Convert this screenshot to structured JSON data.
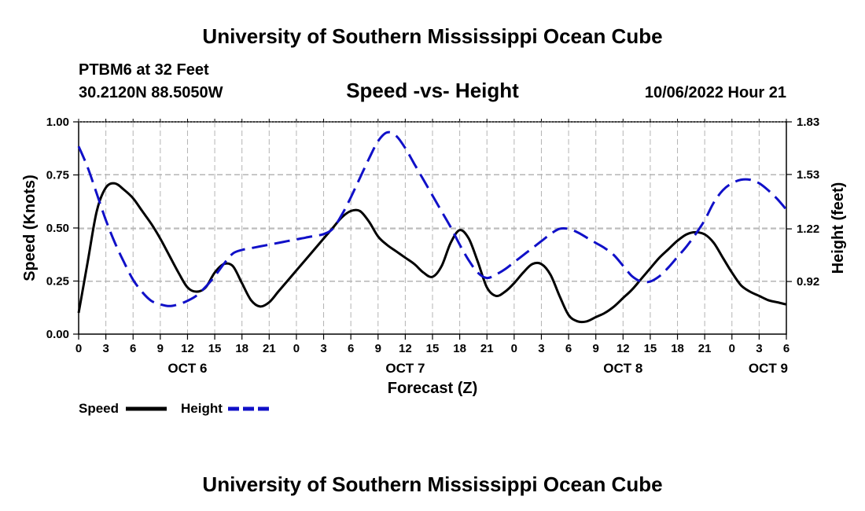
{
  "header": {
    "title": "University of Southern Mississippi Ocean Cube",
    "station": "PTBM6 at 32 Feet",
    "location": "30.2120N  88.5050W",
    "chart_title": "Speed -vs- Height",
    "timestamp": "10/06/2022 Hour 21"
  },
  "footer": {
    "title": "University of Southern Mississippi Ocean Cube"
  },
  "legend": {
    "speed_label": "Speed",
    "height_label": "Height"
  },
  "colors": {
    "speed": "#000000",
    "height": "#1010c8",
    "grid": "#b4b4b4"
  },
  "chart_data": {
    "type": "line",
    "title": "Speed -vs- Height",
    "xlabel": "Forecast (Z)",
    "ylabel": "Speed (Knots)",
    "y2label": "Height (feet)",
    "xlim": [
      0,
      78
    ],
    "ylim": [
      0,
      1.0
    ],
    "y2lim": [
      0.62,
      1.83
    ],
    "x_ticks": [
      0,
      3,
      6,
      9,
      12,
      15,
      18,
      21,
      24,
      27,
      30,
      33,
      36,
      39,
      42,
      45,
      48,
      51,
      54,
      57,
      60,
      63,
      66,
      69,
      72,
      75,
      78
    ],
    "x_tick_labels": [
      "0",
      "3",
      "6",
      "9",
      "12",
      "15",
      "18",
      "21",
      "0",
      "3",
      "6",
      "9",
      "12",
      "15",
      "18",
      "21",
      "0",
      "3",
      "6",
      "9",
      "12",
      "15",
      "18",
      "21",
      "0",
      "3",
      "6"
    ],
    "y_ticks": [
      0,
      0.25,
      0.5,
      0.75,
      1.0
    ],
    "y_tick_labels": [
      "0.00",
      "0.25",
      "0.50",
      "0.75",
      "1.00"
    ],
    "y2_ticks": [
      0.92,
      1.22,
      1.53,
      1.83
    ],
    "y2_tick_labels": [
      "0.92",
      "1.22",
      "1.53",
      "1.83"
    ],
    "day_labels": [
      {
        "x": 12,
        "label": "OCT 6"
      },
      {
        "x": 36,
        "label": "OCT 7"
      },
      {
        "x": 60,
        "label": "OCT 8"
      },
      {
        "x": 76,
        "label": "OCT 9"
      }
    ],
    "grid": true,
    "series": [
      {
        "name": "Speed",
        "axis": "left",
        "style": "solid",
        "x": [
          0,
          1,
          2,
          3,
          4,
          5,
          6,
          7,
          8,
          9,
          10,
          11,
          12,
          13,
          14,
          15,
          16,
          17,
          18,
          19,
          20,
          21,
          22,
          23,
          24,
          25,
          26,
          27,
          28,
          29,
          30,
          31,
          32,
          33,
          34,
          35,
          36,
          37,
          38,
          39,
          40,
          41,
          42,
          43,
          44,
          45,
          46,
          47,
          48,
          49,
          50,
          51,
          52,
          53,
          54,
          55,
          56,
          57,
          58,
          59,
          60,
          61,
          62,
          63,
          64,
          65,
          66,
          67,
          68,
          69,
          70,
          71,
          72,
          73,
          74,
          75,
          76,
          77,
          78
        ],
        "values": [
          0.1,
          0.34,
          0.58,
          0.69,
          0.71,
          0.68,
          0.64,
          0.58,
          0.52,
          0.45,
          0.37,
          0.29,
          0.22,
          0.2,
          0.22,
          0.29,
          0.33,
          0.32,
          0.24,
          0.16,
          0.13,
          0.15,
          0.2,
          0.25,
          0.3,
          0.35,
          0.4,
          0.45,
          0.5,
          0.55,
          0.58,
          0.58,
          0.53,
          0.46,
          0.42,
          0.39,
          0.36,
          0.33,
          0.29,
          0.27,
          0.32,
          0.43,
          0.49,
          0.45,
          0.34,
          0.22,
          0.18,
          0.2,
          0.24,
          0.29,
          0.33,
          0.33,
          0.28,
          0.18,
          0.09,
          0.06,
          0.06,
          0.08,
          0.1,
          0.13,
          0.17,
          0.21,
          0.26,
          0.31,
          0.36,
          0.4,
          0.44,
          0.47,
          0.48,
          0.47,
          0.43,
          0.36,
          0.29,
          0.23,
          0.2,
          0.18,
          0.16,
          0.15,
          0.14
        ]
      },
      {
        "name": "Height",
        "axis": "right",
        "style": "dashed",
        "x": [
          0,
          1,
          2,
          3,
          4,
          5,
          6,
          7,
          8,
          9,
          10,
          11,
          12,
          13,
          14,
          15,
          16,
          17,
          18,
          19,
          20,
          21,
          22,
          23,
          24,
          25,
          26,
          27,
          28,
          29,
          30,
          31,
          32,
          33,
          34,
          35,
          36,
          37,
          38,
          39,
          40,
          41,
          42,
          43,
          44,
          45,
          46,
          47,
          48,
          49,
          50,
          51,
          52,
          53,
          54,
          55,
          56,
          57,
          58,
          59,
          60,
          61,
          62,
          63,
          64,
          65,
          66,
          67,
          68,
          69,
          70,
          71,
          72,
          73,
          74,
          75,
          76,
          77,
          78
        ],
        "values": [
          1.69,
          1.57,
          1.42,
          1.27,
          1.14,
          1.03,
          0.93,
          0.86,
          0.81,
          0.79,
          0.78,
          0.79,
          0.81,
          0.84,
          0.89,
          0.95,
          1.02,
          1.08,
          1.1,
          1.11,
          1.12,
          1.13,
          1.14,
          1.15,
          1.16,
          1.17,
          1.18,
          1.19,
          1.22,
          1.3,
          1.4,
          1.51,
          1.62,
          1.72,
          1.77,
          1.75,
          1.68,
          1.59,
          1.5,
          1.41,
          1.32,
          1.23,
          1.13,
          1.04,
          0.97,
          0.94,
          0.96,
          0.99,
          1.03,
          1.07,
          1.11,
          1.15,
          1.19,
          1.22,
          1.22,
          1.2,
          1.17,
          1.14,
          1.11,
          1.07,
          1.01,
          0.95,
          0.92,
          0.92,
          0.95,
          1.0,
          1.06,
          1.12,
          1.19,
          1.27,
          1.37,
          1.44,
          1.48,
          1.5,
          1.5,
          1.48,
          1.44,
          1.39,
          1.33
        ]
      }
    ]
  }
}
